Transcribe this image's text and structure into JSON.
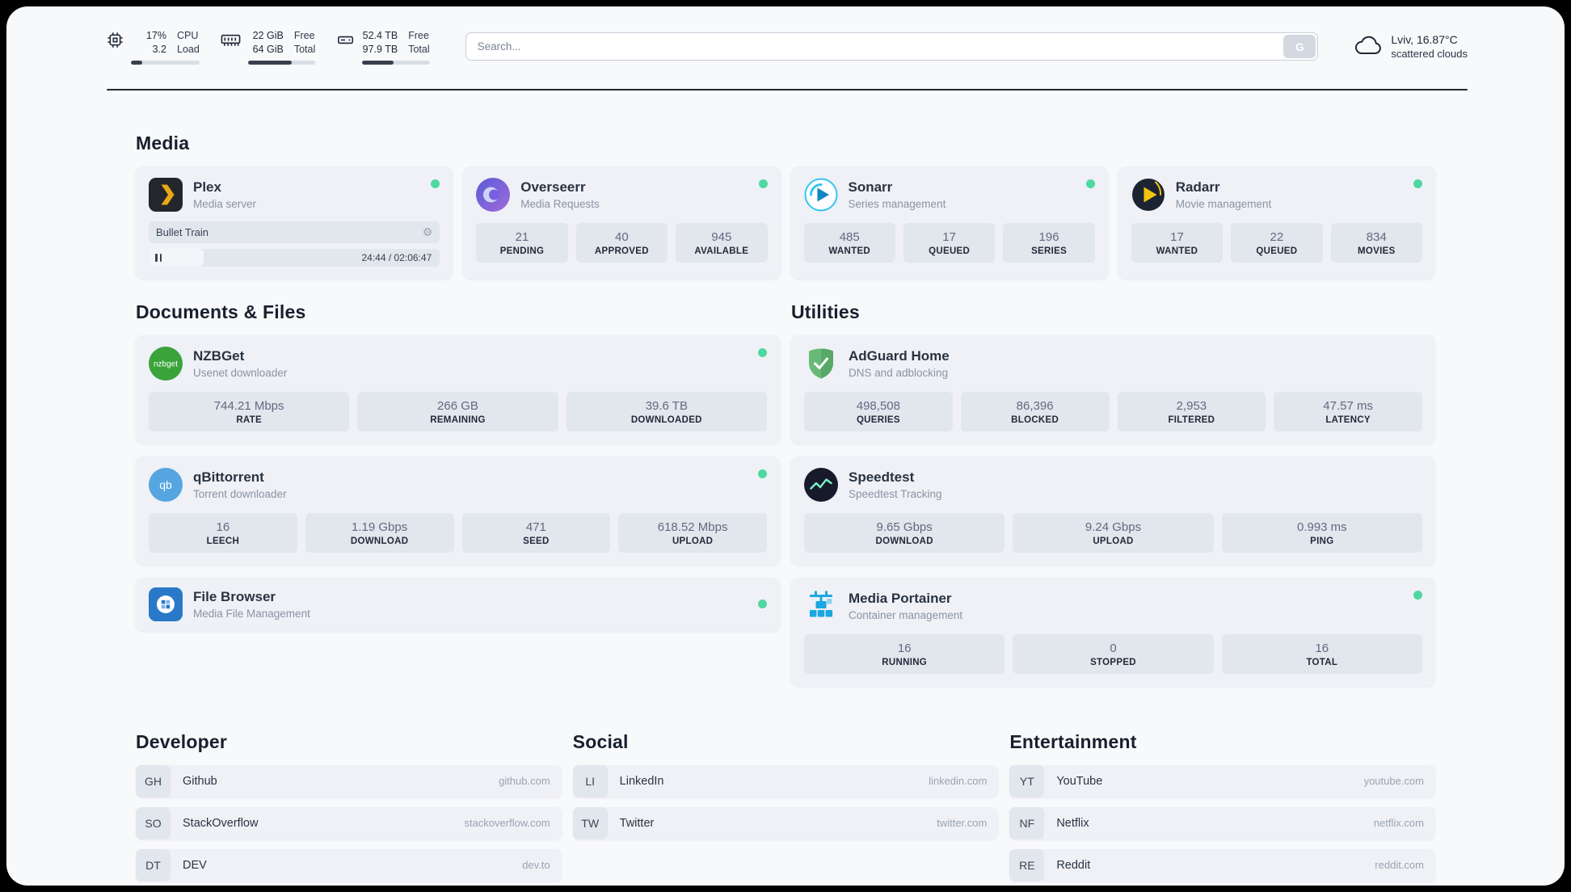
{
  "colors": {
    "status_online": "#4fd8a0",
    "page_background": "#f8f9fb",
    "card_background": "#eff1f6",
    "stat_background": "#e2e6ed"
  },
  "header": {
    "cpu": {
      "value_top": "17%",
      "value_bottom": "3.2",
      "label_top": "CPU",
      "label_bottom": "Load",
      "progress_pct": 17
    },
    "ram": {
      "value_top": "22 GiB",
      "value_bottom": "64 GiB",
      "label_top": "Free",
      "label_bottom": "Total",
      "progress_pct": 65
    },
    "disk": {
      "value_top": "52.4 TB",
      "value_bottom": "97.9 TB",
      "label_top": "Free",
      "label_bottom": "Total",
      "progress_pct": 47
    },
    "search": {
      "placeholder": "Search...",
      "button_label": "G"
    },
    "weather": {
      "location": "Lviv, 16.87°C",
      "condition": "scattered clouds"
    }
  },
  "sections": {
    "media": "Media",
    "documents": "Documents & Files",
    "utilities": "Utilities",
    "developer": "Developer",
    "social": "Social",
    "entertainment": "Entertainment"
  },
  "services": {
    "plex": {
      "name": "Plex",
      "desc": "Media server",
      "status": "online",
      "player": {
        "title": "Bullet Train",
        "time": "24:44 / 02:06:47",
        "progress_pct": 19
      }
    },
    "overseerr": {
      "name": "Overseerr",
      "desc": "Media Requests",
      "status": "online",
      "stats": [
        {
          "value": "21",
          "label": "PENDING"
        },
        {
          "value": "40",
          "label": "APPROVED"
        },
        {
          "value": "945",
          "label": "AVAILABLE"
        }
      ]
    },
    "sonarr": {
      "name": "Sonarr",
      "desc": "Series management",
      "status": "online",
      "stats": [
        {
          "value": "485",
          "label": "WANTED"
        },
        {
          "value": "17",
          "label": "QUEUED"
        },
        {
          "value": "196",
          "label": "SERIES"
        }
      ]
    },
    "radarr": {
      "name": "Radarr",
      "desc": "Movie management",
      "status": "online",
      "stats": [
        {
          "value": "17",
          "label": "WANTED"
        },
        {
          "value": "22",
          "label": "QUEUED"
        },
        {
          "value": "834",
          "label": "MOVIES"
        }
      ]
    },
    "nzbget": {
      "name": "NZBGet",
      "desc": "Usenet downloader",
      "status": "online",
      "stats": [
        {
          "value": "744.21 Mbps",
          "label": "RATE"
        },
        {
          "value": "266 GB",
          "label": "REMAINING"
        },
        {
          "value": "39.6 TB",
          "label": "DOWNLOADED"
        }
      ]
    },
    "qbittorrent": {
      "name": "qBittorrent",
      "desc": "Torrent downloader",
      "status": "online",
      "stats": [
        {
          "value": "16",
          "label": "LEECH"
        },
        {
          "value": "1.19 Gbps",
          "label": "DOWNLOAD"
        },
        {
          "value": "471",
          "label": "SEED"
        },
        {
          "value": "618.52 Mbps",
          "label": "UPLOAD"
        }
      ]
    },
    "filebrowser": {
      "name": "File Browser",
      "desc": "Media File Management",
      "status": "online"
    },
    "adguard": {
      "name": "AdGuard Home",
      "desc": "DNS and adblocking",
      "stats": [
        {
          "value": "498,508",
          "label": "QUERIES"
        },
        {
          "value": "86,396",
          "label": "BLOCKED"
        },
        {
          "value": "2,953",
          "label": "FILTERED"
        },
        {
          "value": "47.57 ms",
          "label": "LATENCY"
        }
      ]
    },
    "speedtest": {
      "name": "Speedtest",
      "desc": "Speedtest Tracking",
      "stats": [
        {
          "value": "9.65 Gbps",
          "label": "DOWNLOAD"
        },
        {
          "value": "9.24 Gbps",
          "label": "UPLOAD"
        },
        {
          "value": "0.993 ms",
          "label": "PING"
        }
      ]
    },
    "portainer": {
      "name": "Media Portainer",
      "desc": "Container management",
      "status": "online",
      "stats": [
        {
          "value": "16",
          "label": "RUNNING"
        },
        {
          "value": "0",
          "label": "STOPPED"
        },
        {
          "value": "16",
          "label": "TOTAL"
        }
      ]
    }
  },
  "bookmarks": {
    "developer": [
      {
        "abbr": "GH",
        "name": "Github",
        "url": "github.com"
      },
      {
        "abbr": "SO",
        "name": "StackOverflow",
        "url": "stackoverflow.com"
      },
      {
        "abbr": "DT",
        "name": "DEV",
        "url": "dev.to"
      }
    ],
    "social": [
      {
        "abbr": "LI",
        "name": "LinkedIn",
        "url": "linkedin.com"
      },
      {
        "abbr": "TW",
        "name": "Twitter",
        "url": "twitter.com"
      }
    ],
    "entertainment": [
      {
        "abbr": "YT",
        "name": "YouTube",
        "url": "youtube.com"
      },
      {
        "abbr": "NF",
        "name": "Netflix",
        "url": "netflix.com"
      },
      {
        "abbr": "RE",
        "name": "Reddit",
        "url": "reddit.com"
      }
    ]
  },
  "icons": {
    "gear": "⚙"
  }
}
